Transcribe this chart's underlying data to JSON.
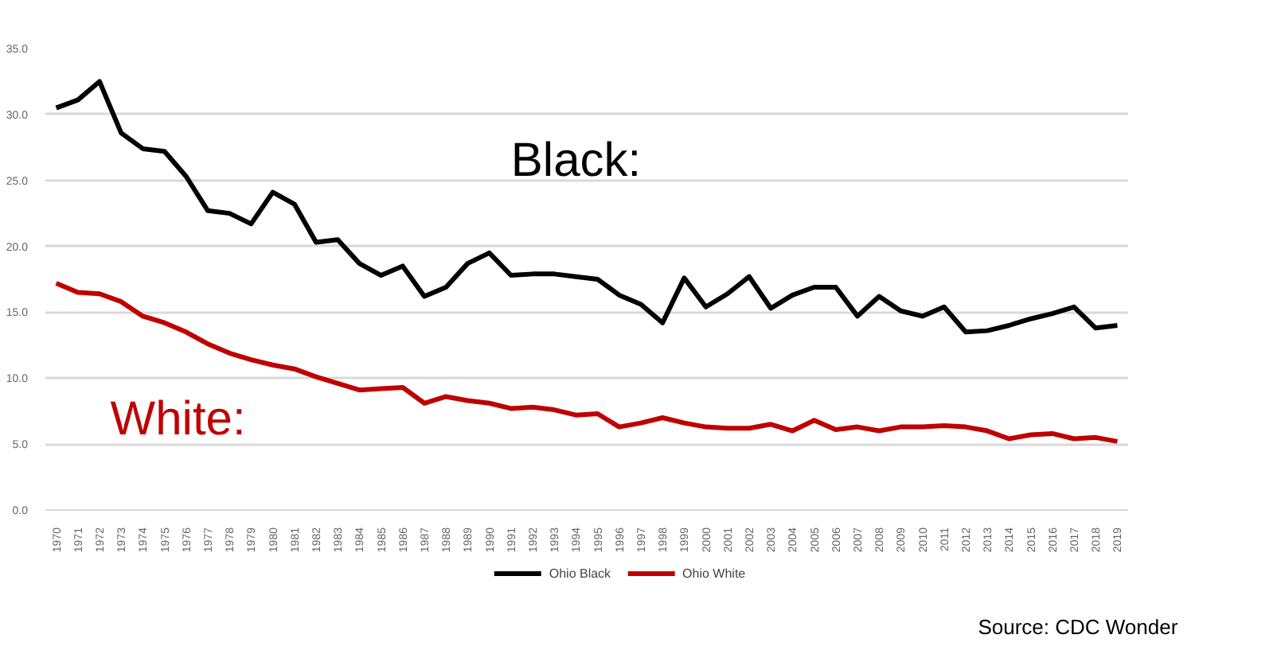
{
  "chart_data": {
    "type": "line",
    "categories": [
      "1970",
      "1971",
      "1972",
      "1973",
      "1974",
      "1975",
      "1976",
      "1977",
      "1978",
      "1979",
      "1980",
      "1981",
      "1982",
      "1983",
      "1984",
      "1985",
      "1986",
      "1987",
      "1988",
      "1989",
      "1990",
      "1991",
      "1992",
      "1993",
      "1994",
      "1995",
      "1996",
      "1997",
      "1998",
      "1999",
      "2000",
      "2001",
      "2002",
      "2003",
      "2004",
      "2005",
      "2006",
      "2007",
      "2008",
      "2009",
      "2010",
      "2011",
      "2012",
      "2013",
      "2014",
      "2015",
      "2016",
      "2017",
      "2018",
      "2019"
    ],
    "series": [
      {
        "name": "Ohio Black",
        "color": "#000000",
        "values": [
          30.5,
          31.1,
          32.5,
          28.6,
          27.4,
          27.2,
          25.3,
          22.7,
          22.5,
          21.7,
          24.1,
          23.2,
          20.3,
          20.5,
          18.7,
          17.8,
          18.5,
          16.2,
          16.9,
          18.7,
          19.5,
          17.8,
          17.9,
          17.9,
          17.7,
          17.5,
          16.3,
          15.6,
          14.2,
          17.6,
          15.4,
          16.4,
          17.7,
          15.3,
          16.3,
          16.9,
          16.9,
          14.7,
          16.2,
          15.1,
          14.7,
          15.4,
          13.5,
          13.6,
          14.0,
          14.5,
          14.9,
          15.4,
          13.8,
          14.0
        ]
      },
      {
        "name": "Ohio White",
        "color": "#c00000",
        "values": [
          17.2,
          16.5,
          16.4,
          15.8,
          14.7,
          14.2,
          13.5,
          12.6,
          11.9,
          11.4,
          11.0,
          10.7,
          10.1,
          9.6,
          9.1,
          9.2,
          9.3,
          8.1,
          8.6,
          8.3,
          8.1,
          7.7,
          7.8,
          7.6,
          7.2,
          7.3,
          6.3,
          6.6,
          7.0,
          6.6,
          6.3,
          6.2,
          6.2,
          6.5,
          6.0,
          6.8,
          6.1,
          6.3,
          6.0,
          6.3,
          6.3,
          6.4,
          6.3,
          6.0,
          5.4,
          5.7,
          5.8,
          5.4,
          5.5,
          5.2
        ]
      }
    ],
    "ylim": [
      0,
      35
    ],
    "yticks": [
      {
        "value": 0,
        "label": "0.0"
      },
      {
        "value": 5,
        "label": "5.0"
      },
      {
        "value": 10,
        "label": "10.0"
      },
      {
        "value": 15,
        "label": "15.0"
      },
      {
        "value": 20,
        "label": "20.0"
      },
      {
        "value": 25,
        "label": "25.0"
      },
      {
        "value": 30,
        "label": "30.0"
      },
      {
        "value": 35,
        "label": "35.0"
      }
    ],
    "grid": "y",
    "legend": "bottom",
    "marker": "none",
    "line_style": "solid",
    "annotations": [
      "Black:",
      "White:",
      "Source: CDC Wonder"
    ]
  }
}
